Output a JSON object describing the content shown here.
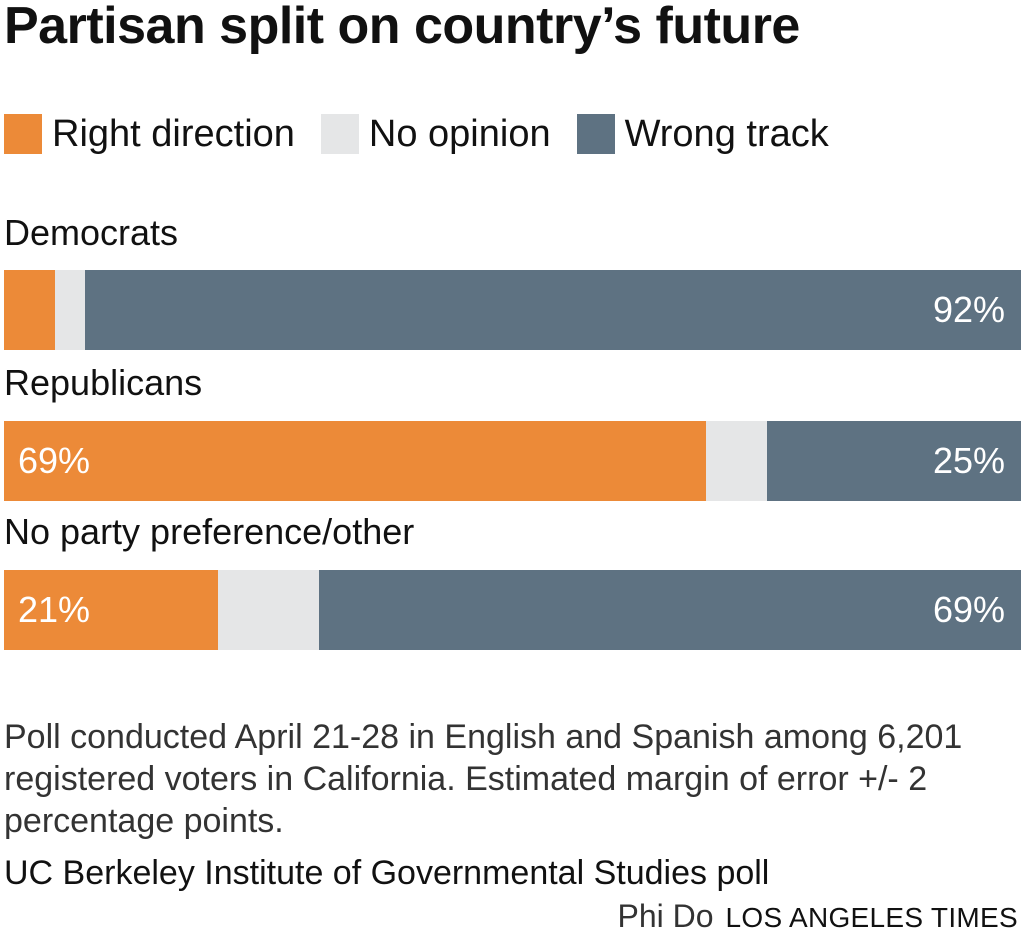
{
  "title": "Partisan split on country’s future",
  "colors": {
    "right": "#ec8a38",
    "none": "#e5e6e7",
    "wrong": "#5e7282"
  },
  "legend": [
    {
      "label": "Right direction",
      "key": "right"
    },
    {
      "label": "No opinion",
      "key": "none"
    },
    {
      "label": "Wrong track",
      "key": "wrong"
    }
  ],
  "chart_data": {
    "type": "bar",
    "stacked": true,
    "orientation": "horizontal",
    "categories": [
      "Democrats",
      "Republicans",
      "No party preference/other"
    ],
    "series": [
      {
        "name": "Right direction",
        "values": [
          5,
          69,
          21
        ]
      },
      {
        "name": "No opinion",
        "values": [
          3,
          6,
          10
        ]
      },
      {
        "name": "Wrong track",
        "values": [
          92,
          25,
          69
        ]
      }
    ],
    "data_labels": [
      {
        "left": "",
        "right": "92%"
      },
      {
        "left": "69%",
        "right": "25%"
      },
      {
        "left": "21%",
        "right": "69%"
      }
    ],
    "xlim": [
      0,
      100
    ]
  },
  "note": "Poll conducted April 21-28 in English and Spanish among 6,201 registered voters in California. Estimated margin of error +/- 2 percentage points.",
  "source": "UC Berkeley Institute of Governmental Studies poll",
  "credit": {
    "name": "Phi Do",
    "org": "LOS ANGELES TIMES"
  }
}
